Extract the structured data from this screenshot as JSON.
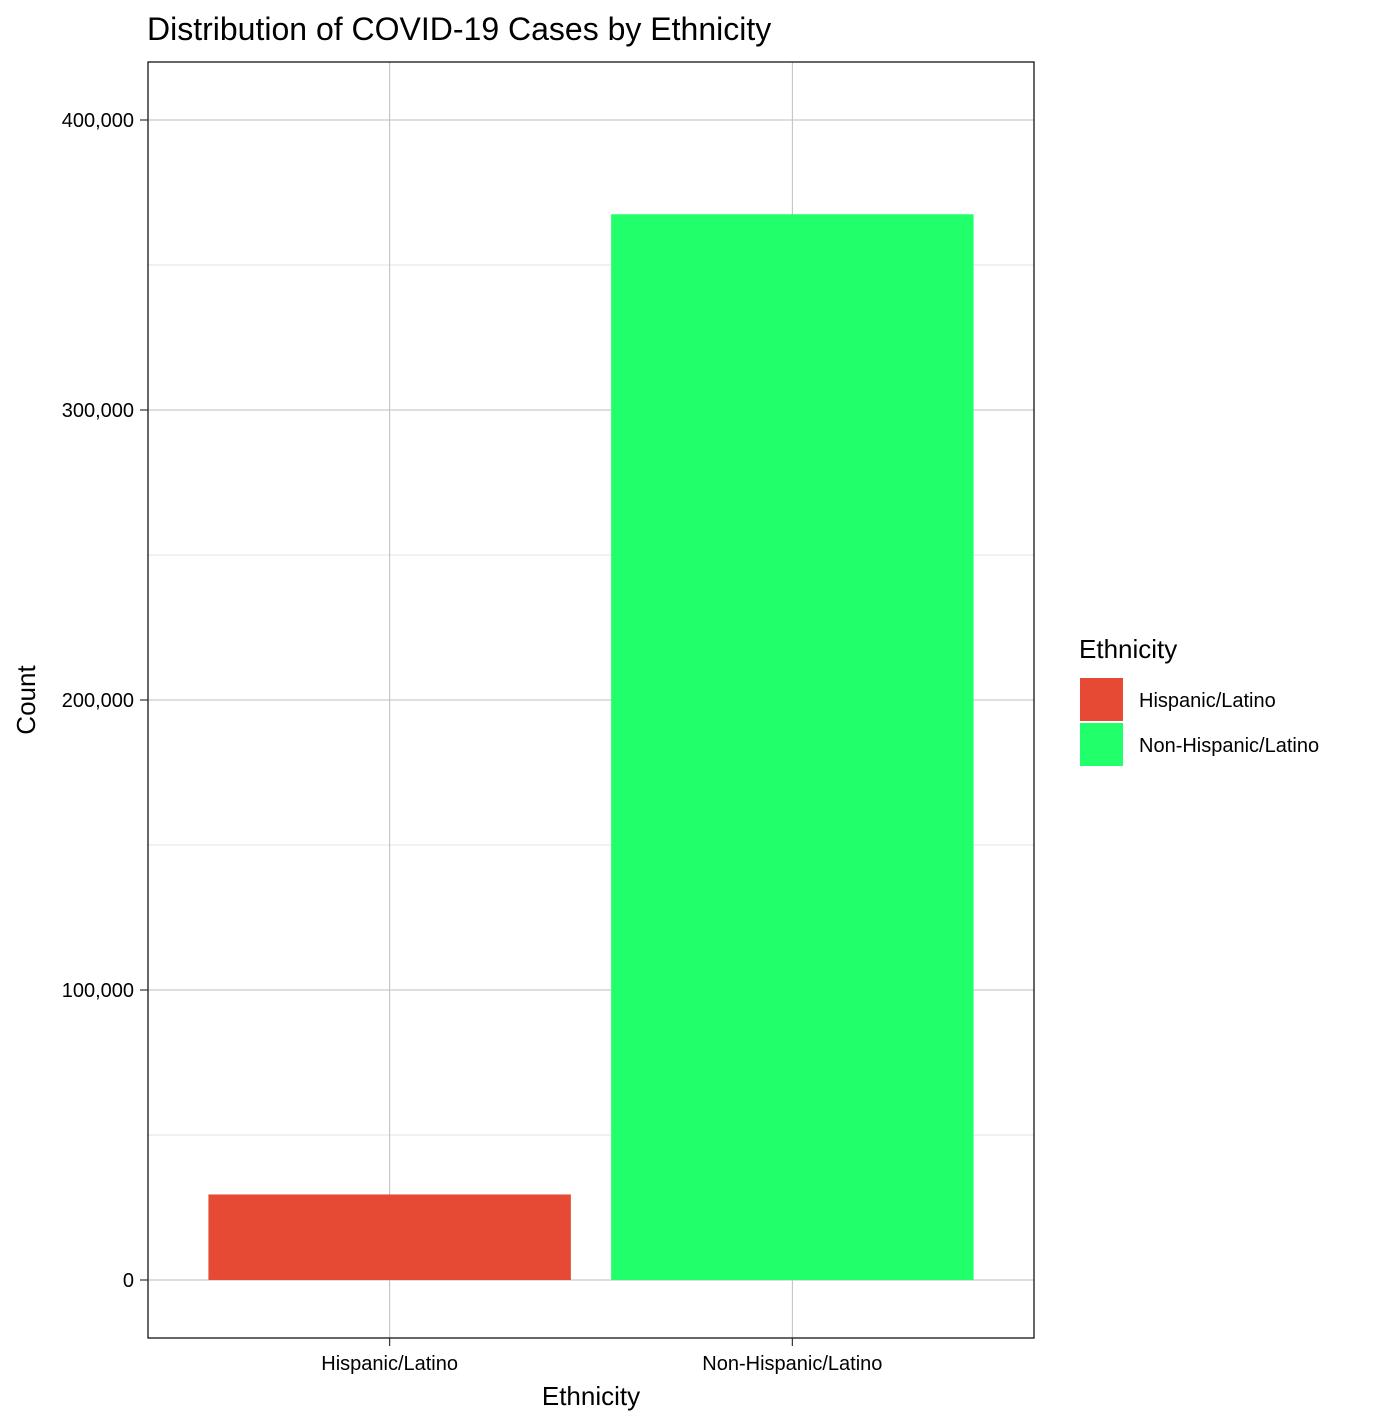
{
  "chart_data": {
    "type": "bar",
    "title": "Distribution of COVID-19 Cases by Ethnicity",
    "xlabel": "Ethnicity",
    "ylabel": "Count",
    "categories": [
      "Hispanic/Latino",
      "Non-Hispanic/Latino"
    ],
    "values": [
      29500,
      367500
    ],
    "colors": [
      "#E64A35",
      "#21FF6A"
    ],
    "ylim": [
      -20000,
      420000
    ],
    "y_ticks": [
      0,
      100000,
      200000,
      300000,
      400000
    ],
    "y_tick_labels": [
      "0",
      "100,000",
      "200,000",
      "300,000",
      "400,000"
    ],
    "grid": true,
    "legend": {
      "title": "Ethnicity",
      "placement": "right",
      "entries": [
        "Hispanic/Latino",
        "Non-Hispanic/Latino"
      ]
    }
  }
}
